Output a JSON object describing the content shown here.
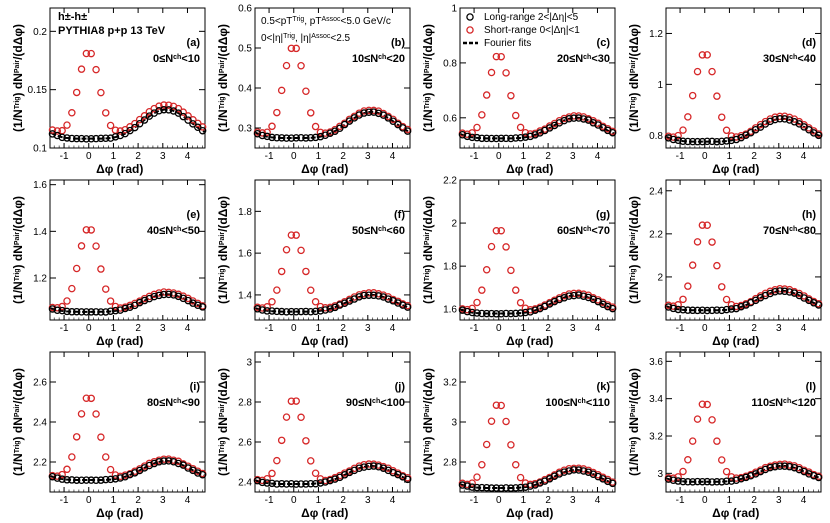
{
  "figure": {
    "title_line1": "h±-h±",
    "title_line2": "PYTHIA8 p+p 13 TeV",
    "cuts_line1": "0.5<pT^Trig, pT^Assoc<5.0 GeV/c",
    "cuts_line2": "0<|η|^Trig, |η|^Assoc<2.5",
    "xlabel": "Δφ (rad)",
    "ylabel": "(1/N^Trig) dN^Pair/(dΔφ)",
    "legend": [
      {
        "label": "Long-range 2<|Δη|<5",
        "marker": "circle",
        "color": "#000000"
      },
      {
        "label": "Short-range 0<|Δη|<1",
        "marker": "circle",
        "color": "#d62728"
      },
      {
        "label": "Fourier fits",
        "marker": "dashed-line",
        "color": "#000000"
      }
    ],
    "colors": {
      "long_range": "#000000",
      "short_range": "#d62728"
    }
  },
  "chart_data": [
    {
      "type": "scatter",
      "panel": "(a)",
      "label": "0≤N^ch<10",
      "xlim": [
        -1.57,
        4.71
      ],
      "ylim": [
        0.1,
        0.22
      ],
      "yticks": [
        0.1,
        0.15,
        0.2
      ],
      "xticks": [
        -1,
        0,
        1,
        2,
        3,
        4
      ],
      "long_base": 0.108,
      "long_peak": 0.133,
      "short_base": 0.111,
      "short_near": 0.183,
      "short_away": 0.137
    },
    {
      "type": "scatter",
      "panel": "(b)",
      "label": "10≤N^ch<20",
      "xlim": [
        -1.57,
        4.71
      ],
      "ylim": [
        0.25,
        0.6
      ],
      "yticks": [
        0.3,
        0.4,
        0.5,
        0.6
      ],
      "xticks": [
        -1,
        0,
        1,
        2,
        3,
        4
      ],
      "long_base": 0.275,
      "long_peak": 0.34,
      "short_base": 0.278,
      "short_near": 0.505,
      "short_away": 0.345
    },
    {
      "type": "scatter",
      "panel": "(c)",
      "label": "20≤N^ch<30",
      "xlim": [
        -1.57,
        4.71
      ],
      "ylim": [
        0.49,
        1.0
      ],
      "yticks": [
        0.6,
        0.8,
        1.0
      ],
      "xticks": [
        -1,
        0,
        1,
        2,
        3,
        4
      ],
      "long_base": 0.525,
      "long_peak": 0.6,
      "short_base": 0.53,
      "short_near": 0.83,
      "short_away": 0.607
    },
    {
      "type": "scatter",
      "panel": "(d)",
      "label": "30≤N^ch<40",
      "xlim": [
        -1.57,
        4.71
      ],
      "ylim": [
        0.75,
        1.3
      ],
      "yticks": [
        0.8,
        1.0,
        1.2
      ],
      "xticks": [
        -1,
        0,
        1,
        2,
        3,
        4
      ],
      "long_base": 0.775,
      "long_peak": 0.865,
      "short_base": 0.78,
      "short_near": 1.125,
      "short_away": 0.875
    },
    {
      "type": "scatter",
      "panel": "(e)",
      "label": "40≤N^ch<50",
      "xlim": [
        -1.57,
        4.71
      ],
      "ylim": [
        1.02,
        1.62
      ],
      "yticks": [
        1.2,
        1.4,
        1.6
      ],
      "xticks": [
        -1,
        0,
        1,
        2,
        3,
        4
      ],
      "long_base": 1.055,
      "long_peak": 1.13,
      "short_base": 1.06,
      "short_near": 1.415,
      "short_away": 1.14
    },
    {
      "type": "scatter",
      "panel": "(f)",
      "label": "50≤N^ch<60",
      "xlim": [
        -1.57,
        4.71
      ],
      "ylim": [
        1.28,
        1.95
      ],
      "yticks": [
        1.4,
        1.6,
        1.8
      ],
      "xticks": [
        -1,
        0,
        1,
        2,
        3,
        4
      ],
      "long_base": 1.32,
      "long_peak": 1.4,
      "short_base": 1.325,
      "short_near": 1.695,
      "short_away": 1.41
    },
    {
      "type": "scatter",
      "panel": "(g)",
      "label": "60≤N^ch<70",
      "xlim": [
        -1.57,
        4.71
      ],
      "ylim": [
        1.55,
        2.2
      ],
      "yticks": [
        1.6,
        1.8,
        2.0,
        2.2
      ],
      "xticks": [
        -1,
        0,
        1,
        2,
        3,
        4
      ],
      "long_base": 1.58,
      "long_peak": 1.665,
      "short_base": 1.585,
      "short_near": 1.975,
      "short_away": 1.675
    },
    {
      "type": "scatter",
      "panel": "(h)",
      "label": "70≤N^ch<80",
      "xlim": [
        -1.57,
        4.71
      ],
      "ylim": [
        1.8,
        2.45
      ],
      "yticks": [
        2.0,
        2.2,
        2.4
      ],
      "xticks": [
        -1,
        0,
        1,
        2,
        3,
        4
      ],
      "long_base": 1.845,
      "long_peak": 1.935,
      "short_base": 1.85,
      "short_near": 2.25,
      "short_away": 1.945
    },
    {
      "type": "scatter",
      "panel": "(i)",
      "label": "80≤N^ch<90",
      "xlim": [
        -1.57,
        4.71
      ],
      "ylim": [
        2.05,
        2.75
      ],
      "yticks": [
        2.2,
        2.4,
        2.6
      ],
      "xticks": [
        -1,
        0,
        1,
        2,
        3,
        4
      ],
      "long_base": 2.11,
      "long_peak": 2.205,
      "short_base": 2.115,
      "short_near": 2.53,
      "short_away": 2.215
    },
    {
      "type": "scatter",
      "panel": "(j)",
      "label": "90≤N^ch<100",
      "xlim": [
        -1.57,
        4.71
      ],
      "ylim": [
        2.35,
        3.05
      ],
      "yticks": [
        2.4,
        2.6,
        2.8,
        3.0
      ],
      "xticks": [
        -1,
        0,
        1,
        2,
        3,
        4
      ],
      "long_base": 2.39,
      "long_peak": 2.48,
      "short_base": 2.395,
      "short_near": 2.815,
      "short_away": 2.49
    },
    {
      "type": "scatter",
      "panel": "(k)",
      "label": "100≤N^ch<110",
      "xlim": [
        -1.57,
        4.71
      ],
      "ylim": [
        2.65,
        3.35
      ],
      "yticks": [
        2.8,
        3.0,
        3.2
      ],
      "xticks": [
        -1,
        0,
        1,
        2,
        3,
        4
      ],
      "long_base": 2.67,
      "long_peak": 2.76,
      "short_base": 2.675,
      "short_near": 3.095,
      "short_away": 2.77
    },
    {
      "type": "scatter",
      "panel": "(l)",
      "label": "110≤N^ch<120",
      "xlim": [
        -1.57,
        4.71
      ],
      "ylim": [
        2.9,
        3.65
      ],
      "yticks": [
        3.0,
        3.2,
        3.4,
        3.6
      ],
      "xticks": [
        -1,
        0,
        1,
        2,
        3,
        4
      ],
      "long_base": 2.955,
      "long_peak": 3.04,
      "short_base": 2.96,
      "short_near": 3.38,
      "short_away": 3.05
    }
  ]
}
